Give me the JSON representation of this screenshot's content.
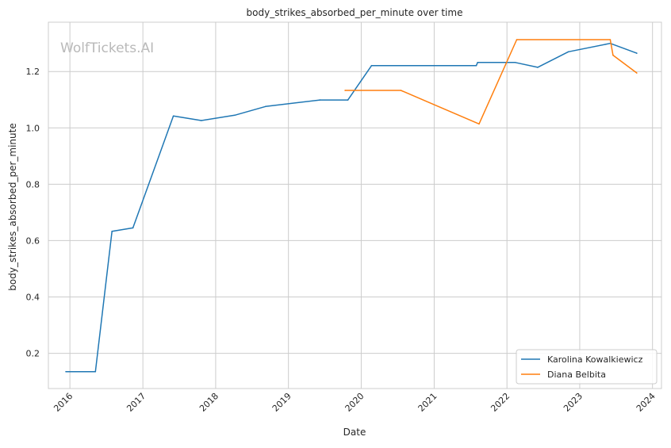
{
  "chart_data": {
    "type": "line",
    "title": "body_strikes_absorbed_per_minute over time",
    "xlabel": "Date",
    "ylabel": "body_strikes_absorbed_per_minute",
    "watermark": "WolfTickets.AI",
    "x_ticks": [
      "2016",
      "2017",
      "2018",
      "2019",
      "2020",
      "2021",
      "2022",
      "2023",
      "2024"
    ],
    "y_ticks": [
      "0.2",
      "0.4",
      "0.6",
      "0.8",
      "1.0",
      "1.2"
    ],
    "xlim": [
      "2015-09-15",
      "2024-02-15"
    ],
    "ylim": [
      0.075,
      1.375
    ],
    "grid": true,
    "legend_position": "bottom-right",
    "series": [
      {
        "name": "Karolina Kowalkiewicz",
        "color": "#1f77b4",
        "points": [
          {
            "x": "2015-12-12",
            "y": 0.135
          },
          {
            "x": "2016-05-08",
            "y": 0.135
          },
          {
            "x": "2016-07-30",
            "y": 0.633
          },
          {
            "x": "2016-11-12",
            "y": 0.645
          },
          {
            "x": "2017-06-03",
            "y": 1.042
          },
          {
            "x": "2017-10-21",
            "y": 1.026
          },
          {
            "x": "2018-04-07",
            "y": 1.045
          },
          {
            "x": "2018-09-08",
            "y": 1.076
          },
          {
            "x": "2019-06-08",
            "y": 1.099
          },
          {
            "x": "2019-10-26",
            "y": 1.099
          },
          {
            "x": "2020-02-22",
            "y": 1.221
          },
          {
            "x": "2021-07-31",
            "y": 1.221
          },
          {
            "x": "2021-08-07",
            "y": 1.232
          },
          {
            "x": "2022-02-12",
            "y": 1.232
          },
          {
            "x": "2022-06-04",
            "y": 1.215
          },
          {
            "x": "2022-11-05",
            "y": 1.27
          },
          {
            "x": "2023-06-03",
            "y": 1.3
          },
          {
            "x": "2023-10-14",
            "y": 1.265
          }
        ]
      },
      {
        "name": "Diana Belbita",
        "color": "#ff7f0e",
        "points": [
          {
            "x": "2019-10-12",
            "y": 1.133
          },
          {
            "x": "2020-07-18",
            "y": 1.133
          },
          {
            "x": "2021-08-14",
            "y": 1.014
          },
          {
            "x": "2022-02-19",
            "y": 1.313
          },
          {
            "x": "2023-06-03",
            "y": 1.313
          },
          {
            "x": "2023-06-17",
            "y": 1.258
          },
          {
            "x": "2023-10-14",
            "y": 1.195
          }
        ]
      }
    ]
  }
}
